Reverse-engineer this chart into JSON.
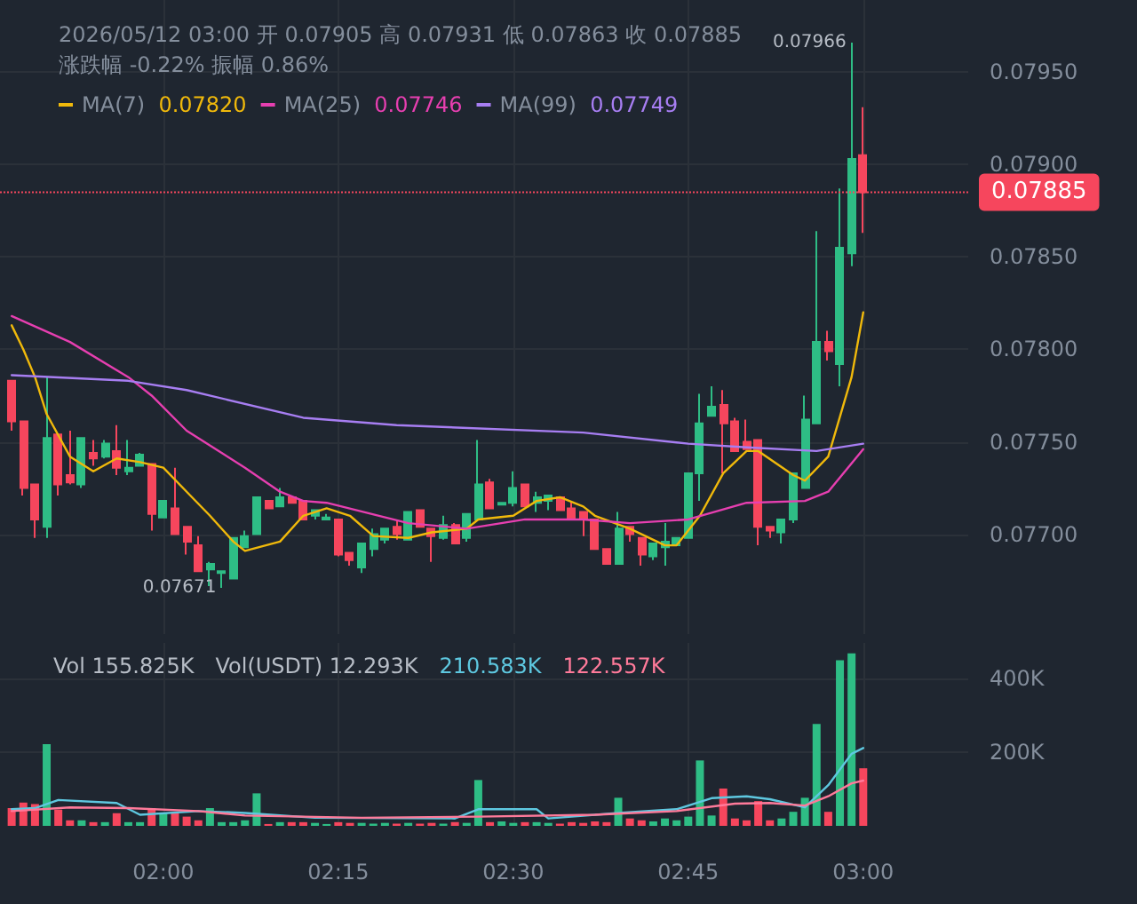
{
  "chart_data": [
    {
      "type": "candlestick",
      "title": "2026/05/12 03:00 开 0.07905 高 0.07931 低 0.07863 收 0.07885 涨跌幅 -0.22% 振幅 0.86%",
      "x": [
        "2026-05-12T01:47",
        "2026-05-12T01:48",
        "2026-05-12T01:49",
        "2026-05-12T01:50",
        "2026-05-12T01:51",
        "2026-05-12T01:52",
        "2026-05-12T01:53",
        "2026-05-12T01:54",
        "2026-05-12T01:55",
        "2026-05-12T01:56",
        "2026-05-12T01:57",
        "2026-05-12T01:58",
        "2026-05-12T01:59",
        "2026-05-12T02:00",
        "2026-05-12T02:01",
        "2026-05-12T02:02",
        "2026-05-12T02:03",
        "2026-05-12T02:04",
        "2026-05-12T02:05",
        "2026-05-12T02:06",
        "2026-05-12T02:07",
        "2026-05-12T02:08",
        "2026-05-12T02:09",
        "2026-05-12T02:10",
        "2026-05-12T02:11",
        "2026-05-12T02:12",
        "2026-05-12T02:13",
        "2026-05-12T02:14",
        "2026-05-12T02:15",
        "2026-05-12T02:16",
        "2026-05-12T02:17",
        "2026-05-12T02:18",
        "2026-05-12T02:19",
        "2026-05-12T02:20",
        "2026-05-12T02:21",
        "2026-05-12T02:22",
        "2026-05-12T02:23",
        "2026-05-12T02:24",
        "2026-05-12T02:25",
        "2026-05-12T02:26",
        "2026-05-12T02:27",
        "2026-05-12T02:28",
        "2026-05-12T02:29",
        "2026-05-12T02:30",
        "2026-05-12T02:31",
        "2026-05-12T02:32",
        "2026-05-12T02:33",
        "2026-05-12T02:34",
        "2026-05-12T02:35",
        "2026-05-12T02:36",
        "2026-05-12T02:37",
        "2026-05-12T02:38",
        "2026-05-12T02:39",
        "2026-05-12T02:40",
        "2026-05-12T02:41",
        "2026-05-12T02:42",
        "2026-05-12T02:43",
        "2026-05-12T02:44",
        "2026-05-12T02:45",
        "2026-05-12T02:46",
        "2026-05-12T02:47",
        "2026-05-12T02:48",
        "2026-05-12T02:49",
        "2026-05-12T02:50",
        "2026-05-12T02:51",
        "2026-05-12T02:52",
        "2026-05-12T02:53",
        "2026-05-12T02:54",
        "2026-05-12T02:55",
        "2026-05-12T02:56",
        "2026-05-12T02:57",
        "2026-05-12T02:58",
        "2026-05-12T02:59",
        "2026-05-12T03:00"
      ],
      "ohlc": [
        [
          0.07783,
          0.07783,
          0.07756,
          0.07761
        ],
        [
          0.07761,
          0.07761,
          0.07721,
          0.07725
        ],
        [
          0.07727,
          0.07727,
          0.07698,
          0.07708
        ],
        [
          0.07704,
          0.07785,
          0.07698,
          0.07752
        ],
        [
          0.07754,
          0.07754,
          0.07721,
          0.07727
        ],
        [
          0.07732,
          0.07756,
          0.07727,
          0.07728
        ],
        [
          0.07727,
          0.07752,
          0.07725,
          0.07752
        ],
        [
          0.07744,
          0.07751,
          0.07737,
          0.07741
        ],
        [
          0.07742,
          0.07751,
          0.07741,
          0.07749
        ],
        [
          0.07745,
          0.07759,
          0.07732,
          0.07736
        ],
        [
          0.07734,
          0.07751,
          0.07732,
          0.07736
        ],
        [
          0.07737,
          0.07744,
          0.07737,
          0.07743
        ],
        [
          0.07738,
          0.07738,
          0.07702,
          0.07711
        ],
        [
          0.07709,
          0.07718,
          0.07709,
          0.07718
        ],
        [
          0.07714,
          0.07736,
          0.077,
          0.077
        ],
        [
          0.07704,
          0.07704,
          0.07689,
          0.07696
        ],
        [
          0.07694,
          0.07699,
          0.0768,
          0.0768
        ],
        [
          0.07681,
          0.07685,
          0.07672,
          0.07684
        ],
        [
          0.07679,
          0.0768,
          0.07671,
          0.0768
        ],
        [
          0.07676,
          0.07698,
          0.07676,
          0.07698
        ],
        [
          0.07693,
          0.07702,
          0.07693,
          0.07699
        ],
        [
          0.077,
          0.0772,
          0.077,
          0.0772
        ],
        [
          0.07718,
          0.07718,
          0.07714,
          0.07714
        ],
        [
          0.07715,
          0.07725,
          0.07715,
          0.0772
        ],
        [
          0.0772,
          0.0772,
          0.07717,
          0.07717
        ],
        [
          0.07718,
          0.07718,
          0.07708,
          0.07708
        ],
        [
          0.0771,
          0.07713,
          0.07708,
          0.07713
        ],
        [
          0.07708,
          0.07711,
          0.07708,
          0.07709
        ],
        [
          0.07708,
          0.07708,
          0.07688,
          0.07689
        ],
        [
          0.0769,
          0.0769,
          0.07683,
          0.07686
        ],
        [
          0.07682,
          0.07695,
          0.07679,
          0.07695
        ],
        [
          0.07692,
          0.07703,
          0.07688,
          0.077
        ],
        [
          0.07697,
          0.07703,
          0.07695,
          0.07703
        ],
        [
          0.07704,
          0.07708,
          0.07697,
          0.077
        ],
        [
          0.07697,
          0.07712,
          0.07697,
          0.07712
        ],
        [
          0.07713,
          0.07713,
          0.07704,
          0.07704
        ],
        [
          0.07703,
          0.07703,
          0.07685,
          0.07699
        ],
        [
          0.07698,
          0.0771,
          0.07697,
          0.07705
        ],
        [
          0.07705,
          0.07706,
          0.07695,
          0.07695
        ],
        [
          0.07698,
          0.07711,
          0.07696,
          0.07711
        ],
        [
          0.07708,
          0.07751,
          0.07708,
          0.07727
        ],
        [
          0.07728,
          0.0773,
          0.07714,
          0.07714
        ],
        [
          0.07716,
          0.07717,
          0.07716,
          0.07717
        ],
        [
          0.07717,
          0.07734,
          0.07715,
          0.07725
        ],
        [
          0.07727,
          0.07727,
          0.07715,
          0.07715
        ],
        [
          0.07717,
          0.07723,
          0.07712,
          0.0772
        ],
        [
          0.07718,
          0.07721,
          0.07713,
          0.07721
        ],
        [
          0.0772,
          0.0772,
          0.07713,
          0.07713
        ],
        [
          0.07714,
          0.07718,
          0.07708,
          0.07708
        ],
        [
          0.07712,
          0.07712,
          0.07699,
          0.07708
        ],
        [
          0.07708,
          0.07708,
          0.07692,
          0.07692
        ],
        [
          0.07692,
          0.07692,
          0.07684,
          0.07684
        ],
        [
          0.07684,
          0.07712,
          0.07684,
          0.07703
        ],
        [
          0.07704,
          0.07704,
          0.07696,
          0.077
        ],
        [
          0.07698,
          0.07698,
          0.07683,
          0.07689
        ],
        [
          0.07688,
          0.07695,
          0.07686,
          0.07695
        ],
        [
          0.07693,
          0.07706,
          0.07683,
          0.07696
        ],
        [
          0.07694,
          0.07698,
          0.07694,
          0.07698
        ],
        [
          0.07698,
          0.07733,
          0.07698,
          0.07733
        ],
        [
          0.07733,
          0.07776,
          0.07718,
          0.0776
        ],
        [
          0.07764,
          0.0778,
          0.07764,
          0.07769
        ],
        [
          0.0777,
          0.07778,
          0.07733,
          0.0776
        ],
        [
          0.07761,
          0.07763,
          0.07745,
          0.07745
        ],
        [
          0.0775,
          0.07762,
          0.07746,
          0.07746
        ],
        [
          0.07751,
          0.07751,
          0.07694,
          0.07704
        ],
        [
          0.07704,
          0.07704,
          0.07698,
          0.07702
        ],
        [
          0.07701,
          0.07708,
          0.07695,
          0.07708
        ],
        [
          0.07708,
          0.07733,
          0.07706,
          0.07733
        ],
        [
          0.07725,
          0.07775,
          0.07725,
          0.07762
        ],
        [
          0.0776,
          0.07864,
          0.0776,
          0.07804
        ],
        [
          0.07804,
          0.0781,
          0.07794,
          0.07799
        ],
        [
          0.07792,
          0.07887,
          0.0778,
          0.07855
        ],
        [
          0.07852,
          0.07966,
          0.07845,
          0.07903
        ],
        [
          0.07905,
          0.07931,
          0.07863,
          0.07885
        ]
      ],
      "colors": [
        "#f6465d",
        "#f6465d",
        "#f6465d",
        "#2ebd85",
        "#f6465d",
        "#f6465d",
        "#2ebd85",
        "#f6465d",
        "#2ebd85",
        "#f6465d",
        "#2ebd85",
        "#2ebd85",
        "#f6465d",
        "#2ebd85",
        "#f6465d",
        "#f6465d",
        "#f6465d",
        "#2ebd85",
        "#2ebd85",
        "#2ebd85",
        "#2ebd85",
        "#2ebd85",
        "#f6465d",
        "#2ebd85",
        "#f6465d",
        "#f6465d",
        "#2ebd85",
        "#2ebd85",
        "#f6465d",
        "#f6465d",
        "#2ebd85",
        "#2ebd85",
        "#2ebd85",
        "#f6465d",
        "#2ebd85",
        "#f6465d",
        "#f6465d",
        "#2ebd85",
        "#f6465d",
        "#2ebd85",
        "#2ebd85",
        "#f6465d",
        "#2ebd85",
        "#2ebd85",
        "#f6465d",
        "#2ebd85",
        "#2ebd85",
        "#f6465d",
        "#f6465d",
        "#f6465d",
        "#f6465d",
        "#f6465d",
        "#2ebd85",
        "#f6465d",
        "#f6465d",
        "#2ebd85",
        "#2ebd85",
        "#2ebd85",
        "#2ebd85",
        "#2ebd85",
        "#2ebd85",
        "#f6465d",
        "#f6465d",
        "#f6465d",
        "#f6465d",
        "#f6465d",
        "#2ebd85",
        "#2ebd85",
        "#2ebd85",
        "#2ebd85",
        "#f6465d",
        "#2ebd85",
        "#2ebd85",
        "#f6465d"
      ],
      "series": [
        {
          "type": "line",
          "name": "MA(7)",
          "color": "#f0b90b",
          "x": [
            "2026-05-12T01:47",
            "2026-05-12T01:48",
            "2026-05-12T01:49",
            "2026-05-12T01:50",
            "2026-05-12T01:52",
            "2026-05-12T01:54",
            "2026-05-12T01:56",
            "2026-05-12T01:58",
            "2026-05-12T02:00",
            "2026-05-12T02:02",
            "2026-05-12T02:04",
            "2026-05-12T02:06",
            "2026-05-12T02:07",
            "2026-05-12T02:10",
            "2026-05-12T02:12",
            "2026-05-12T02:14",
            "2026-05-12T02:16",
            "2026-05-12T02:18",
            "2026-05-12T02:21",
            "2026-05-12T02:23",
            "2026-05-12T02:26",
            "2026-05-12T02:27",
            "2026-05-12T02:30",
            "2026-05-12T02:32",
            "2026-05-12T02:34",
            "2026-05-12T02:36",
            "2026-05-12T02:37",
            "2026-05-12T02:40",
            "2026-05-12T02:43",
            "2026-05-12T02:44",
            "2026-05-12T02:46",
            "2026-05-12T02:48",
            "2026-05-12T02:50",
            "2026-05-12T02:51",
            "2026-05-12T02:54",
            "2026-05-12T02:55",
            "2026-05-12T02:57",
            "2026-05-12T02:59",
            "2026-05-12T03:00"
          ],
          "values": [
            0.07813,
            0.078,
            0.07785,
            0.07765,
            0.07742,
            0.07734,
            0.07741,
            0.07739,
            0.07736,
            0.07723,
            0.0771,
            0.07696,
            0.07691,
            0.07696,
            0.0771,
            0.07714,
            0.0771,
            0.07699,
            0.07698,
            0.07701,
            0.07703,
            0.07708,
            0.0771,
            0.07718,
            0.0772,
            0.07715,
            0.0771,
            0.07703,
            0.07694,
            0.07694,
            0.0771,
            0.07733,
            0.07745,
            0.07745,
            0.07732,
            0.07729,
            0.07742,
            0.07785,
            0.0782
          ]
        },
        {
          "type": "line",
          "name": "MA(25)",
          "color": "#e63fb0",
          "x": [
            "2026-05-12T01:47",
            "2026-05-12T01:52",
            "2026-05-12T01:57",
            "2026-05-12T01:59",
            "2026-05-12T02:02",
            "2026-05-12T02:07",
            "2026-05-12T02:10",
            "2026-05-12T02:12",
            "2026-05-12T02:14",
            "2026-05-12T02:21",
            "2026-05-12T02:26",
            "2026-05-12T02:31",
            "2026-05-12T02:36",
            "2026-05-12T02:40",
            "2026-05-12T02:45",
            "2026-05-12T02:50",
            "2026-05-12T02:55",
            "2026-05-12T02:57",
            "2026-05-12T03:00"
          ],
          "values": [
            0.07818,
            0.07804,
            0.07785,
            0.07775,
            0.07756,
            0.07736,
            0.07723,
            0.07718,
            0.07717,
            0.07706,
            0.07703,
            0.07708,
            0.07708,
            0.07706,
            0.07708,
            0.07717,
            0.07718,
            0.07723,
            0.07746
          ]
        },
        {
          "type": "line",
          "name": "MA(99)",
          "color": "#a77ef2",
          "x": [
            "2026-05-12T01:47",
            "2026-05-12T01:57",
            "2026-05-12T02:02",
            "2026-05-12T02:12",
            "2026-05-12T02:20",
            "2026-05-12T02:36",
            "2026-05-12T02:45",
            "2026-05-12T02:50",
            "2026-05-12T02:56",
            "2026-05-12T03:00"
          ],
          "values": [
            0.07786,
            0.07783,
            0.07778,
            0.07763,
            0.07759,
            0.07755,
            0.07749,
            0.07747,
            0.07745,
            0.07749
          ]
        }
      ],
      "xlim": [
        "2026-05-12T01:46",
        "2026-05-12T03:09"
      ],
      "xticks": [
        {
          "value": "2026-05-12T02:00",
          "label": null
        },
        {
          "value": "2026-05-12T02:15",
          "label": null
        },
        {
          "value": "2026-05-12T02:30",
          "label": null
        },
        {
          "value": "2026-05-12T02:45",
          "label": null
        },
        {
          "value": "2026-05-12T03:00",
          "label": null
        }
      ],
      "ylim": [
        0.07646,
        0.07989
      ],
      "yticks": [
        {
          "value": 0.077,
          "label": "0.07700"
        },
        {
          "value": 0.0775,
          "label": "0.07750"
        },
        {
          "value": 0.078,
          "label": "0.07800"
        },
        {
          "value": 0.0785,
          "label": "0.07850"
        },
        {
          "value": 0.079,
          "label": "0.07900"
        },
        {
          "value": 0.0795,
          "label": "0.07950"
        }
      ],
      "tick_labels": "y",
      "grid": true,
      "legend": "top left",
      "ref_lines": [
        {
          "axis": "y",
          "value": 0.07885,
          "label": "0.07885",
          "color": "#f6465d",
          "line_style": "dotted"
        }
      ],
      "annotations": [
        {
          "text": "0.07966",
          "x": "2026-05-12T02:59",
          "y": 0.07966
        },
        {
          "text": "0.07671",
          "x": "2026-05-12T02:05",
          "y": 0.07671
        },
        "0.07820",
        "0.07746",
        "0.07749"
      ]
    },
    {
      "type": "bar",
      "x": [
        "2026-05-12T01:47",
        "2026-05-12T01:48",
        "2026-05-12T01:49",
        "2026-05-12T01:50",
        "2026-05-12T01:51",
        "2026-05-12T01:52",
        "2026-05-12T01:53",
        "2026-05-12T01:54",
        "2026-05-12T01:55",
        "2026-05-12T01:56",
        "2026-05-12T01:57",
        "2026-05-12T01:58",
        "2026-05-12T01:59",
        "2026-05-12T02:00",
        "2026-05-12T02:01",
        "2026-05-12T02:02",
        "2026-05-12T02:03",
        "2026-05-12T02:04",
        "2026-05-12T02:05",
        "2026-05-12T02:06",
        "2026-05-12T02:07",
        "2026-05-12T02:08",
        "2026-05-12T02:09",
        "2026-05-12T02:10",
        "2026-05-12T02:11",
        "2026-05-12T02:12",
        "2026-05-12T02:13",
        "2026-05-12T02:14",
        "2026-05-12T02:15",
        "2026-05-12T02:16",
        "2026-05-12T02:17",
        "2026-05-12T02:18",
        "2026-05-12T02:19",
        "2026-05-12T02:20",
        "2026-05-12T02:21",
        "2026-05-12T02:22",
        "2026-05-12T02:23",
        "2026-05-12T02:24",
        "2026-05-12T02:25",
        "2026-05-12T02:26",
        "2026-05-12T02:27",
        "2026-05-12T02:28",
        "2026-05-12T02:29",
        "2026-05-12T02:30",
        "2026-05-12T02:31",
        "2026-05-12T02:32",
        "2026-05-12T02:33",
        "2026-05-12T02:34",
        "2026-05-12T02:35",
        "2026-05-12T02:36",
        "2026-05-12T02:37",
        "2026-05-12T02:38",
        "2026-05-12T02:39",
        "2026-05-12T02:40",
        "2026-05-12T02:41",
        "2026-05-12T02:42",
        "2026-05-12T02:43",
        "2026-05-12T02:44",
        "2026-05-12T02:45",
        "2026-05-12T02:46",
        "2026-05-12T02:47",
        "2026-05-12T02:48",
        "2026-05-12T02:49",
        "2026-05-12T02:50",
        "2026-05-12T02:51",
        "2026-05-12T02:52",
        "2026-05-12T02:53",
        "2026-05-12T02:54",
        "2026-05-12T02:55",
        "2026-05-12T02:56",
        "2026-05-12T02:57",
        "2026-05-12T02:58",
        "2026-05-12T02:59",
        "2026-05-12T03:00"
      ],
      "series": [
        {
          "values": [
            48000,
            63000,
            59000,
            221000,
            44000,
            15000,
            15000,
            10000,
            10000,
            34000,
            10000,
            10000,
            48000,
            34000,
            34000,
            25000,
            15000,
            48000,
            10000,
            10000,
            15000,
            88000,
            5000,
            10000,
            10000,
            10000,
            8000,
            5000,
            10000,
            8000,
            8000,
            6000,
            8000,
            6000,
            8000,
            6000,
            8000,
            6000,
            10000,
            8000,
            124000,
            10000,
            12000,
            8000,
            10000,
            10000,
            8000,
            6000,
            10000,
            8000,
            12000,
            10000,
            76000,
            20000,
            15000,
            12000,
            20000,
            15000,
            25000,
            177000,
            28000,
            101000,
            20000,
            15000,
            67000,
            15000,
            20000,
            38000,
            76000,
            276000,
            38000,
            448000,
            467000,
            155825
          ],
          "colors": [
            "#f6465d",
            "#f6465d",
            "#f6465d",
            "#2ebd85",
            "#f6465d",
            "#f6465d",
            "#2ebd85",
            "#f6465d",
            "#2ebd85",
            "#f6465d",
            "#2ebd85",
            "#2ebd85",
            "#f6465d",
            "#2ebd85",
            "#f6465d",
            "#f6465d",
            "#f6465d",
            "#2ebd85",
            "#2ebd85",
            "#2ebd85",
            "#2ebd85",
            "#2ebd85",
            "#f6465d",
            "#2ebd85",
            "#f6465d",
            "#f6465d",
            "#2ebd85",
            "#2ebd85",
            "#f6465d",
            "#f6465d",
            "#2ebd85",
            "#2ebd85",
            "#2ebd85",
            "#f6465d",
            "#2ebd85",
            "#f6465d",
            "#f6465d",
            "#2ebd85",
            "#f6465d",
            "#2ebd85",
            "#2ebd85",
            "#f6465d",
            "#2ebd85",
            "#2ebd85",
            "#f6465d",
            "#2ebd85",
            "#2ebd85",
            "#f6465d",
            "#f6465d",
            "#f6465d",
            "#f6465d",
            "#f6465d",
            "#2ebd85",
            "#f6465d",
            "#f6465d",
            "#2ebd85",
            "#2ebd85",
            "#2ebd85",
            "#2ebd85",
            "#2ebd85",
            "#2ebd85",
            "#f6465d",
            "#f6465d",
            "#f6465d",
            "#f6465d",
            "#f6465d",
            "#2ebd85",
            "#2ebd85",
            "#2ebd85",
            "#2ebd85",
            "#f6465d",
            "#2ebd85",
            "#2ebd85",
            "#f6465d"
          ]
        },
        {
          "type": "line",
          "color": "#5ec8e0",
          "x": [
            "2026-05-12T01:47",
            "2026-05-12T01:49",
            "2026-05-12T01:51",
            "2026-05-12T01:56",
            "2026-05-12T01:58",
            "2026-05-12T02:03",
            "2026-05-12T02:07",
            "2026-05-12T02:13",
            "2026-05-12T02:25",
            "2026-05-12T02:27",
            "2026-05-12T02:32",
            "2026-05-12T02:33",
            "2026-05-12T02:39",
            "2026-05-12T02:44",
            "2026-05-12T02:47",
            "2026-05-12T02:50",
            "2026-05-12T02:52",
            "2026-05-12T02:55",
            "2026-05-12T02:57",
            "2026-05-12T02:59",
            "2026-05-12T03:00"
          ],
          "values": [
            45000,
            48000,
            70000,
            62000,
            30000,
            40000,
            35000,
            22000,
            20000,
            45000,
            45000,
            20000,
            35000,
            45000,
            75000,
            80000,
            72000,
            50000,
            110000,
            195000,
            210583
          ]
        },
        {
          "type": "line",
          "color": "#ff7a9a",
          "x": [
            "2026-05-12T01:47",
            "2026-05-12T01:52",
            "2026-05-12T01:57",
            "2026-05-12T02:03",
            "2026-05-12T02:07",
            "2026-05-12T02:17",
            "2026-05-12T02:27",
            "2026-05-12T02:37",
            "2026-05-12T02:44",
            "2026-05-12T02:49",
            "2026-05-12T02:52",
            "2026-05-12T02:55",
            "2026-05-12T02:57",
            "2026-05-12T02:59",
            "2026-05-12T03:00"
          ],
          "values": [
            40000,
            50000,
            48000,
            40000,
            28000,
            22000,
            25000,
            30000,
            40000,
            60000,
            62000,
            55000,
            80000,
            115000,
            122557
          ]
        }
      ],
      "xlim": [
        "2026-05-12T01:46",
        "2026-05-12T03:09"
      ],
      "xticks": [
        {
          "value": "2026-05-12T02:00",
          "label": "02:00"
        },
        {
          "value": "2026-05-12T02:15",
          "label": "02:15"
        },
        {
          "value": "2026-05-12T02:30",
          "label": "02:30"
        },
        {
          "value": "2026-05-12T02:45",
          "label": "02:45"
        },
        {
          "value": "2026-05-12T03:00",
          "label": "03:00"
        }
      ],
      "ylim": [
        0,
        495000
      ],
      "yticks": [
        {
          "value": 200000,
          "label": "200K"
        },
        {
          "value": 400000,
          "label": "400K"
        }
      ],
      "grid": true,
      "annotations": [
        "Vol 155.825K",
        "Vol(USDT) 12.293K",
        "210.583K",
        "122.557K"
      ]
    }
  ]
}
